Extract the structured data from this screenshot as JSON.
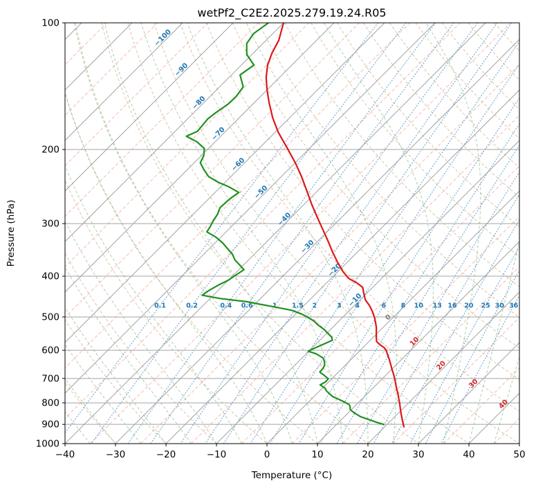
{
  "chart_data": {
    "type": "skewt_log_p",
    "title": "wetPf2_C2E2.2025.279.19.24.R05",
    "xlabel": "Temperature (°C)",
    "ylabel": "Pressure (hPa)",
    "x_tick_labels": [
      "−40",
      "−30",
      "−20",
      "−10",
      "0",
      "10",
      "20",
      "30",
      "40",
      "50"
    ],
    "x_tick_values": [
      -40,
      -30,
      -20,
      -10,
      0,
      10,
      20,
      30,
      40,
      50
    ],
    "y_tick_labels": [
      "100",
      "200",
      "300",
      "400",
      "500",
      "600",
      "700",
      "800",
      "900",
      "1000"
    ],
    "y_tick_values": [
      100,
      200,
      300,
      400,
      500,
      600,
      700,
      800,
      900,
      1000
    ],
    "pressure_top_hpa": 100,
    "pressure_bottom_hpa": 1000,
    "temp_min_c": -40,
    "temp_max_c": 50,
    "skew_deg": 45,
    "grid": true,
    "isotherms_major_c": {
      "start": -120,
      "end": 50,
      "step": 10
    },
    "isotherms_minor_c": {
      "start": -115,
      "end": 45,
      "step": 10
    },
    "dry_adiabats_theta_c": {
      "start": -40,
      "end": 180,
      "step": 10
    },
    "moist_adiabats_t0_c": {
      "start": -40,
      "end": 50,
      "step": 5
    },
    "mixing_ratios_g_kg": [
      0.1,
      0.2,
      0.4,
      0.6,
      1,
      1.5,
      2,
      3,
      4,
      6,
      8,
      10,
      13,
      16,
      20,
      25,
      30,
      36
    ],
    "mixing_ratio_label_pressure_hpa": 470,
    "isotherm_labels": [
      {
        "t_c": -100,
        "p_hpa": 110
      },
      {
        "t_c": -90,
        "p_hpa": 131
      },
      {
        "t_c": -80,
        "p_hpa": 157
      },
      {
        "t_c": -70,
        "p_hpa": 186
      },
      {
        "t_c": -60,
        "p_hpa": 220
      },
      {
        "t_c": -50,
        "p_hpa": 256
      },
      {
        "t_c": -40,
        "p_hpa": 297
      },
      {
        "t_c": -30,
        "p_hpa": 345
      },
      {
        "t_c": -20,
        "p_hpa": 392
      },
      {
        "t_c": -10,
        "p_hpa": 462
      },
      {
        "t_c": 0,
        "p_hpa": 508
      },
      {
        "t_c": 10,
        "p_hpa": 580
      },
      {
        "t_c": 20,
        "p_hpa": 661
      },
      {
        "t_c": 30,
        "p_hpa": 730
      },
      {
        "t_c": 40,
        "p_hpa": 817
      }
    ],
    "series": [
      {
        "name": "temperature",
        "color": "#e01515",
        "points_p_t": [
          [
            100,
            -80
          ],
          [
            110,
            -77.5
          ],
          [
            118,
            -76.3
          ],
          [
            126,
            -74.8
          ],
          [
            135,
            -72.6
          ],
          [
            145,
            -69.8
          ],
          [
            155,
            -67
          ],
          [
            168,
            -63.4
          ],
          [
            182,
            -59.4
          ],
          [
            198,
            -54.6
          ],
          [
            215,
            -50
          ],
          [
            232,
            -46
          ],
          [
            250,
            -42.3
          ],
          [
            270,
            -38.5
          ],
          [
            290,
            -34.8
          ],
          [
            310,
            -31.3
          ],
          [
            330,
            -28
          ],
          [
            350,
            -25
          ],
          [
            370,
            -22
          ],
          [
            390,
            -19
          ],
          [
            405,
            -16.5
          ],
          [
            415,
            -14
          ],
          [
            425,
            -12
          ],
          [
            440,
            -10.5
          ],
          [
            455,
            -9
          ],
          [
            470,
            -7
          ],
          [
            485,
            -5.3
          ],
          [
            500,
            -3.8
          ],
          [
            515,
            -2.5
          ],
          [
            530,
            -1.3
          ],
          [
            545,
            -0.3
          ],
          [
            560,
            0.7
          ],
          [
            572,
            1.5
          ],
          [
            582,
            2.8
          ],
          [
            592,
            4.3
          ],
          [
            602,
            5.3
          ],
          [
            615,
            6.3
          ],
          [
            630,
            7.5
          ],
          [
            648,
            8.8
          ],
          [
            665,
            10
          ],
          [
            682,
            11.2
          ],
          [
            700,
            12.4
          ],
          [
            720,
            13.6
          ],
          [
            740,
            14.8
          ],
          [
            760,
            16
          ],
          [
            780,
            17.1
          ],
          [
            800,
            18.2
          ],
          [
            820,
            19.2
          ],
          [
            840,
            20.2
          ],
          [
            860,
            21.2
          ],
          [
            880,
            22.2
          ],
          [
            900,
            23.2
          ],
          [
            912,
            23.8
          ]
        ]
      },
      {
        "name": "dewpoint",
        "color": "#1f8f1f",
        "points_p_t": [
          [
            100,
            -83
          ],
          [
            106,
            -83.8
          ],
          [
            112,
            -83.2
          ],
          [
            119,
            -81
          ],
          [
            126,
            -77.5
          ],
          [
            133,
            -78.3
          ],
          [
            142,
            -75.3
          ],
          [
            150,
            -74.8
          ],
          [
            156,
            -74.9
          ],
          [
            163,
            -75.6
          ],
          [
            169,
            -76
          ],
          [
            175,
            -75.8
          ],
          [
            181,
            -75.6
          ],
          [
            186,
            -76.8
          ],
          [
            192,
            -73.5
          ],
          [
            199,
            -70.8
          ],
          [
            207,
            -69.5
          ],
          [
            215,
            -68.8
          ],
          [
            223,
            -66.8
          ],
          [
            232,
            -64.4
          ],
          [
            239,
            -61.5
          ],
          [
            245,
            -58.5
          ],
          [
            253,
            -55.3
          ],
          [
            262,
            -55.8
          ],
          [
            275,
            -56
          ],
          [
            285,
            -55.2
          ],
          [
            296,
            -54.7
          ],
          [
            305,
            -54.2
          ],
          [
            314,
            -53.8
          ],
          [
            323,
            -51
          ],
          [
            333,
            -48.6
          ],
          [
            345,
            -46.2
          ],
          [
            355,
            -44.3
          ],
          [
            366,
            -42.7
          ],
          [
            376,
            -40.8
          ],
          [
            386,
            -39
          ],
          [
            397,
            -39.5
          ],
          [
            409,
            -40
          ],
          [
            420,
            -41
          ],
          [
            432,
            -41.8
          ],
          [
            444,
            -42.2
          ],
          [
            452,
            -38
          ],
          [
            460,
            -32
          ],
          [
            471,
            -26.7
          ],
          [
            482,
            -21.5
          ],
          [
            492,
            -18.8
          ],
          [
            500,
            -17.1
          ],
          [
            511,
            -15
          ],
          [
            523,
            -13.3
          ],
          [
            536,
            -11.2
          ],
          [
            549,
            -9.5
          ],
          [
            558,
            -8.3
          ],
          [
            568,
            -7.5
          ],
          [
            577,
            -8.2
          ],
          [
            586,
            -8.9
          ],
          [
            595,
            -9.6
          ],
          [
            603,
            -10.1
          ],
          [
            612,
            -8
          ],
          [
            626,
            -5.8
          ],
          [
            639,
            -4.8
          ],
          [
            651,
            -4.1
          ],
          [
            663,
            -3.8
          ],
          [
            676,
            -3.7
          ],
          [
            688,
            -2.2
          ],
          [
            701,
            -0.7
          ],
          [
            713,
            -0.6
          ],
          [
            725,
            -1.1
          ],
          [
            738,
            0.5
          ],
          [
            750,
            1.4
          ],
          [
            761,
            2.5
          ],
          [
            772,
            3.6
          ],
          [
            783,
            5.2
          ],
          [
            794,
            6.8
          ],
          [
            808,
            8.6
          ],
          [
            818,
            9.2
          ],
          [
            829,
            9.7
          ],
          [
            838,
            10.5
          ],
          [
            847,
            11.4
          ],
          [
            855,
            12.3
          ],
          [
            863,
            13.2
          ],
          [
            876,
            15.3
          ],
          [
            890,
            17.5
          ],
          [
            900,
            19.3
          ]
        ]
      }
    ]
  },
  "colors": {
    "isobar": "#a3a3a3",
    "isotherm": "#a3a3a3",
    "isotherm_minor": "#f0968c",
    "dry_adiabat": "#b9a06b",
    "moist_adiabat": "#5ba05b",
    "mixing_ratio": "#3f87c0",
    "label_negative": "#1f77b4",
    "label_zero": "#808080",
    "label_positive": "#d62728",
    "temperature_line": "#e01515",
    "dewpoint_line": "#1f8f1f",
    "axis": "#000000"
  }
}
